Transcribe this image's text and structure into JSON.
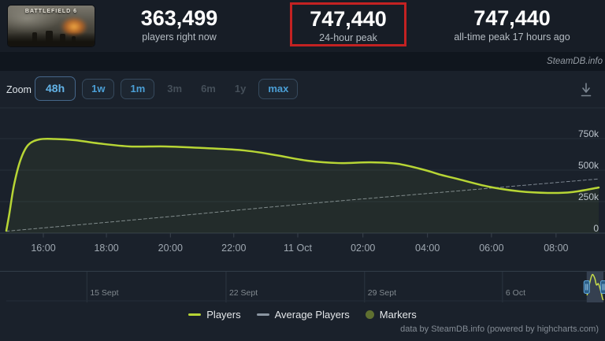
{
  "header": {
    "game_title": "BATTLEFIELD 6",
    "stats": [
      {
        "value": "363,499",
        "label": "players right now",
        "highlight": false
      },
      {
        "value": "747,440",
        "label": "24-hour peak",
        "highlight": true
      },
      {
        "value": "747,440",
        "label": "all-time peak 17 hours ago",
        "highlight": false
      }
    ]
  },
  "watermark": "SteamDB.info",
  "toolbar": {
    "zoom_label": "Zoom",
    "buttons": [
      {
        "label": "48h",
        "state": "active"
      },
      {
        "label": "1w",
        "state": "enabled"
      },
      {
        "label": "1m",
        "state": "enabled"
      },
      {
        "label": "3m",
        "state": "disabled"
      },
      {
        "label": "6m",
        "state": "disabled"
      },
      {
        "label": "1y",
        "state": "disabled"
      },
      {
        "label": "max",
        "state": "enabled"
      }
    ],
    "download_icon": "download-icon"
  },
  "chart_data": {
    "type": "line",
    "title": "Player count history",
    "ylim": [
      0,
      994000
    ],
    "grid": true,
    "legend_position": "bottom",
    "yticks": [
      {
        "label": "0",
        "value": 0
      },
      {
        "label": "250k",
        "value": 250000
      },
      {
        "label": "500k",
        "value": 500000
      },
      {
        "label": "750k",
        "value": 750000
      }
    ],
    "xticks": [
      {
        "label": "16:00",
        "f": 0.0625
      },
      {
        "label": "18:00",
        "f": 0.169
      },
      {
        "label": "20:00",
        "f": 0.277
      },
      {
        "label": "22:00",
        "f": 0.384
      },
      {
        "label": "11 Oct",
        "f": 0.492
      },
      {
        "label": "02:00",
        "f": 0.602
      },
      {
        "label": "04:00",
        "f": 0.711
      },
      {
        "label": "06:00",
        "f": 0.819
      },
      {
        "label": "08:00",
        "f": 0.928
      }
    ],
    "series": [
      {
        "name": "Players",
        "color": "#b7d535",
        "style": "solid",
        "width": 2.5,
        "points": [
          [
            0.0,
            19000
          ],
          [
            0.005,
            150000
          ],
          [
            0.013,
            381000
          ],
          [
            0.024,
            581000
          ],
          [
            0.037,
            700000
          ],
          [
            0.056,
            744000
          ],
          [
            0.082,
            747440
          ],
          [
            0.116,
            738000
          ],
          [
            0.156,
            712000
          ],
          [
            0.209,
            688000
          ],
          [
            0.269,
            688000
          ],
          [
            0.335,
            675000
          ],
          [
            0.402,
            656000
          ],
          [
            0.455,
            619000
          ],
          [
            0.508,
            575000
          ],
          [
            0.561,
            556000
          ],
          [
            0.614,
            562000
          ],
          [
            0.661,
            550000
          ],
          [
            0.707,
            500000
          ],
          [
            0.734,
            462000
          ],
          [
            0.761,
            431000
          ],
          [
            0.814,
            369000
          ],
          [
            0.867,
            331000
          ],
          [
            0.914,
            319000
          ],
          [
            0.954,
            325000
          ],
          [
            1.0,
            362000
          ]
        ]
      },
      {
        "name": "Average Players",
        "color": "#97a1ac",
        "style": "dashed",
        "width": 1,
        "points": [
          [
            0.0,
            15000
          ],
          [
            0.25,
            120000
          ],
          [
            0.5,
            230000
          ],
          [
            0.75,
            330000
          ],
          [
            1.0,
            430000
          ]
        ]
      }
    ],
    "navigator": {
      "ticks": [
        {
          "label": "15 Sept",
          "f": 0.135
        },
        {
          "label": "22 Sept",
          "f": 0.368
        },
        {
          "label": "29 Sept",
          "f": 0.6
        },
        {
          "label": "6 Oct",
          "f": 0.831
        }
      ],
      "selection": [
        0.972,
        1.0
      ],
      "mini_points": [
        [
          0.02,
          0.8
        ],
        [
          0.18,
          0.35
        ],
        [
          0.33,
          0.05
        ],
        [
          0.48,
          0.18
        ],
        [
          0.58,
          0.42
        ],
        [
          0.7,
          0.38
        ],
        [
          0.82,
          0.6
        ],
        [
          0.95,
          0.92
        ],
        [
          1.0,
          0.97
        ]
      ]
    }
  },
  "legend": [
    {
      "label": "Players",
      "swatch": "line",
      "color": "#b7d535"
    },
    {
      "label": "Average Players",
      "swatch": "line",
      "color": "#8b96a2"
    },
    {
      "label": "Markers",
      "swatch": "circle",
      "color": "#5f7030"
    }
  ],
  "credits": "data by SteamDB.info (powered by highcharts.com)",
  "colors": {
    "background": "#1a212b",
    "header_background": "#171d26",
    "watermark_bar": "#10161e",
    "highlight_box": "#c32222",
    "grid_line": "#262f3a",
    "zero_line": "#343e4a",
    "tick_mark": "#3a434e",
    "players_line": "#b7d535",
    "players_fill": "rgba(181,213,53,0.06)",
    "average_line": "#97a1ac",
    "accent_blue": "#4b9fd6",
    "navigator_outline": "#323c48",
    "navigator_selection": "rgba(125,148,175,0.28)",
    "navigator_handle_fill": "#2a5d86",
    "navigator_handle_stroke": "#61a5d8"
  }
}
